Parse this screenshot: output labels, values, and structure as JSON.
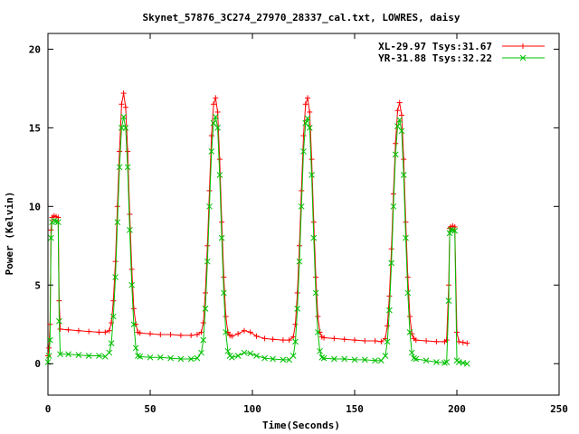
{
  "chart_data": {
    "type": "line",
    "title": "Skynet_57876_3C274_27970_28337_cal.txt, LOWRES, daisy",
    "xlabel": "Time(Seconds)",
    "ylabel": "Power (Kelvin)",
    "xlim": [
      0,
      250
    ],
    "ylim": [
      -2,
      21
    ],
    "xticks": [
      0,
      50,
      100,
      150,
      200,
      250
    ],
    "yticks": [
      0,
      5,
      10,
      15,
      20
    ],
    "grid": false,
    "legend_position": "top-right",
    "series": [
      {
        "name": "XL-29.97 Tsys:31.67",
        "color": "#ff0000",
        "marker": "plus",
        "points": [
          [
            0,
            0.5
          ],
          [
            0.5,
            1.0
          ],
          [
            1,
            2.5
          ],
          [
            1.5,
            8.5
          ],
          [
            2,
            9.3
          ],
          [
            3,
            9.4
          ],
          [
            4,
            9.35
          ],
          [
            5,
            9.3
          ],
          [
            5.5,
            4.0
          ],
          [
            6,
            2.2
          ],
          [
            10,
            2.15
          ],
          [
            15,
            2.1
          ],
          [
            20,
            2.05
          ],
          [
            25,
            2.0
          ],
          [
            28,
            2.0
          ],
          [
            30,
            2.1
          ],
          [
            31,
            2.6
          ],
          [
            32,
            4.0
          ],
          [
            33,
            6.5
          ],
          [
            34,
            10.0
          ],
          [
            35,
            13.5
          ],
          [
            36,
            16.5
          ],
          [
            37,
            17.2
          ],
          [
            38,
            16.3
          ],
          [
            39,
            13.5
          ],
          [
            40,
            9.5
          ],
          [
            41,
            6.0
          ],
          [
            42,
            3.5
          ],
          [
            43,
            2.5
          ],
          [
            44,
            2.0
          ],
          [
            45,
            1.95
          ],
          [
            50,
            1.9
          ],
          [
            55,
            1.85
          ],
          [
            60,
            1.85
          ],
          [
            65,
            1.8
          ],
          [
            70,
            1.8
          ],
          [
            73,
            1.85
          ],
          [
            75,
            2.0
          ],
          [
            76,
            2.6
          ],
          [
            77,
            4.5
          ],
          [
            78,
            7.5
          ],
          [
            79,
            11.0
          ],
          [
            80,
            14.5
          ],
          [
            81,
            16.5
          ],
          [
            82,
            16.9
          ],
          [
            83,
            16.0
          ],
          [
            84,
            13.0
          ],
          [
            85,
            9.0
          ],
          [
            86,
            5.5
          ],
          [
            87,
            3.0
          ],
          [
            88,
            2.0
          ],
          [
            89,
            1.8
          ],
          [
            90,
            1.75
          ],
          [
            93,
            1.9
          ],
          [
            96,
            2.1
          ],
          [
            99,
            2.0
          ],
          [
            102,
            1.75
          ],
          [
            106,
            1.6
          ],
          [
            110,
            1.55
          ],
          [
            115,
            1.5
          ],
          [
            118,
            1.5
          ],
          [
            120,
            1.7
          ],
          [
            121,
            2.5
          ],
          [
            122,
            4.5
          ],
          [
            123,
            7.5
          ],
          [
            124,
            11.0
          ],
          [
            125,
            14.5
          ],
          [
            126,
            16.5
          ],
          [
            127,
            16.9
          ],
          [
            128,
            16.0
          ],
          [
            129,
            13.0
          ],
          [
            130,
            9.0
          ],
          [
            131,
            5.5
          ],
          [
            132,
            3.0
          ],
          [
            133,
            2.0
          ],
          [
            134,
            1.7
          ],
          [
            135,
            1.65
          ],
          [
            140,
            1.6
          ],
          [
            145,
            1.55
          ],
          [
            150,
            1.5
          ],
          [
            155,
            1.45
          ],
          [
            160,
            1.45
          ],
          [
            163,
            1.4
          ],
          [
            165,
            1.6
          ],
          [
            166,
            2.4
          ],
          [
            167,
            4.3
          ],
          [
            168,
            7.3
          ],
          [
            169,
            10.8
          ],
          [
            170,
            14.0
          ],
          [
            171,
            16.1
          ],
          [
            172,
            16.6
          ],
          [
            173,
            15.8
          ],
          [
            174,
            13.0
          ],
          [
            175,
            9.0
          ],
          [
            176,
            5.5
          ],
          [
            177,
            3.0
          ],
          [
            178,
            1.9
          ],
          [
            179,
            1.6
          ],
          [
            180,
            1.5
          ],
          [
            185,
            1.45
          ],
          [
            190,
            1.4
          ],
          [
            194,
            1.4
          ],
          [
            195,
            1.5
          ],
          [
            196,
            5.0
          ],
          [
            196.5,
            8.6
          ],
          [
            197,
            8.7
          ],
          [
            198,
            8.75
          ],
          [
            199,
            8.7
          ],
          [
            200,
            2.0
          ],
          [
            201,
            1.4
          ],
          [
            203,
            1.35
          ],
          [
            205,
            1.3
          ]
        ]
      },
      {
        "name": "YR-31.88 Tsys:32.22",
        "color": "#00c000",
        "marker": "cross",
        "points": [
          [
            0,
            0.1
          ],
          [
            0.5,
            0.5
          ],
          [
            1,
            1.5
          ],
          [
            1.5,
            8.0
          ],
          [
            2,
            9.0
          ],
          [
            3,
            9.1
          ],
          [
            4,
            9.05
          ],
          [
            5,
            9.0
          ],
          [
            5.5,
            2.7
          ],
          [
            6,
            0.6
          ],
          [
            10,
            0.6
          ],
          [
            15,
            0.55
          ],
          [
            20,
            0.5
          ],
          [
            25,
            0.5
          ],
          [
            28,
            0.45
          ],
          [
            30,
            0.7
          ],
          [
            31,
            1.3
          ],
          [
            32,
            3.0
          ],
          [
            33,
            5.5
          ],
          [
            34,
            9.0
          ],
          [
            35,
            12.5
          ],
          [
            36,
            15.0
          ],
          [
            37,
            15.7
          ],
          [
            38,
            15.0
          ],
          [
            39,
            12.5
          ],
          [
            40,
            8.5
          ],
          [
            41,
            5.0
          ],
          [
            42,
            2.5
          ],
          [
            43,
            1.0
          ],
          [
            44,
            0.5
          ],
          [
            45,
            0.45
          ],
          [
            50,
            0.4
          ],
          [
            55,
            0.4
          ],
          [
            60,
            0.35
          ],
          [
            65,
            0.3
          ],
          [
            70,
            0.3
          ],
          [
            73,
            0.35
          ],
          [
            75,
            0.7
          ],
          [
            76,
            1.5
          ],
          [
            77,
            3.5
          ],
          [
            78,
            6.5
          ],
          [
            79,
            10.0
          ],
          [
            80,
            13.5
          ],
          [
            81,
            15.3
          ],
          [
            82,
            15.7
          ],
          [
            83,
            15.0
          ],
          [
            84,
            12.0
          ],
          [
            85,
            8.0
          ],
          [
            86,
            4.5
          ],
          [
            87,
            2.0
          ],
          [
            88,
            0.8
          ],
          [
            89,
            0.5
          ],
          [
            90,
            0.4
          ],
          [
            93,
            0.5
          ],
          [
            96,
            0.7
          ],
          [
            99,
            0.65
          ],
          [
            102,
            0.5
          ],
          [
            106,
            0.35
          ],
          [
            110,
            0.3
          ],
          [
            115,
            0.25
          ],
          [
            118,
            0.25
          ],
          [
            120,
            0.5
          ],
          [
            121,
            1.4
          ],
          [
            122,
            3.5
          ],
          [
            123,
            6.5
          ],
          [
            124,
            10.0
          ],
          [
            125,
            13.5
          ],
          [
            126,
            15.3
          ],
          [
            127,
            15.6
          ],
          [
            128,
            15.0
          ],
          [
            129,
            12.0
          ],
          [
            130,
            8.0
          ],
          [
            131,
            4.5
          ],
          [
            132,
            2.0
          ],
          [
            133,
            0.8
          ],
          [
            134,
            0.4
          ],
          [
            135,
            0.35
          ],
          [
            140,
            0.3
          ],
          [
            145,
            0.3
          ],
          [
            150,
            0.25
          ],
          [
            155,
            0.25
          ],
          [
            160,
            0.2
          ],
          [
            163,
            0.2
          ],
          [
            165,
            0.5
          ],
          [
            166,
            1.4
          ],
          [
            167,
            3.4
          ],
          [
            168,
            6.4
          ],
          [
            169,
            10.0
          ],
          [
            170,
            13.3
          ],
          [
            171,
            15.1
          ],
          [
            172,
            15.5
          ],
          [
            173,
            14.8
          ],
          [
            174,
            12.0
          ],
          [
            175,
            8.0
          ],
          [
            176,
            4.5
          ],
          [
            177,
            2.0
          ],
          [
            178,
            0.7
          ],
          [
            179,
            0.35
          ],
          [
            180,
            0.3
          ],
          [
            185,
            0.2
          ],
          [
            190,
            0.1
          ],
          [
            194,
            0.05
          ],
          [
            195,
            0.1
          ],
          [
            196,
            4.0
          ],
          [
            196.5,
            8.3
          ],
          [
            197,
            8.5
          ],
          [
            198,
            8.5
          ],
          [
            199,
            8.45
          ],
          [
            200,
            0.2
          ],
          [
            201,
            0.1
          ],
          [
            203,
            0.05
          ],
          [
            205,
            0.0
          ]
        ]
      }
    ]
  }
}
